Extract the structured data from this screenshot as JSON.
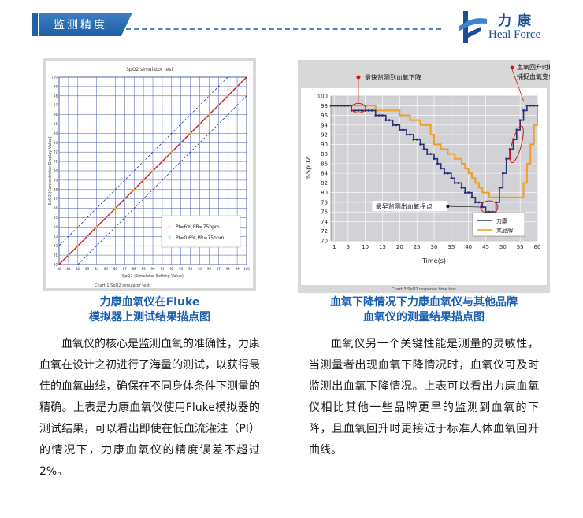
{
  "header": {
    "title": "监测精度"
  },
  "logo": {
    "cn": "力康",
    "en": "Heal Force"
  },
  "left": {
    "chart_title": "SpO2 simulator test",
    "chart_caption": "Chart 1 SpO2 simulator test",
    "caption_line1": "力康血氧仪在Fluke",
    "caption_line2": "模拟器上测试结果描点图",
    "paragraph": "血氧仪的核心是监测血氧的准确性，力康血氧在设计之初进行了海量的测试，以获得最佳的血氧曲线，确保在不同身体条件下测量的精确。上表是力康血氧仪使用Fluke模拟器的测试结果，可以看出即使在低血流灌注（PI）的情况下，力康血氧仪的精度误差不超过2%。"
  },
  "right": {
    "chart_caption": "Chart 3 SpO2 response time test",
    "caption_line1": "血氧下降情况下力康血氧仪与其他品牌",
    "caption_line2": "血氧仪的测量结果描点图",
    "annotation_fastest": "最快监测到血氧下降",
    "annotation_recover_1": "血氧回升时精确",
    "annotation_recover_2": "捕捉血氧变化",
    "annotation_earliest": "最早监测出血氧拐点",
    "paragraph": "血氧仪另一个关键性能是测量的灵敏性，当测量者出现血氧下降情况时，血氧仪可及时监测出血氧下降情况。上表可以看出力康血氧仪相比其他一些品牌更早的监测到血氧的下降，且血氧回升时更接近于标准人体血氧回升曲线。"
  },
  "chart_data": [
    {
      "type": "scatter",
      "title": "SpO2 simulator test",
      "xlabel": "SpO2 (Simulator Setting Value)",
      "ylabel": "SpO2 (Concentrator Display Value)",
      "xlim": [
        80,
        100
      ],
      "ylim": [
        80,
        100
      ],
      "xticks": [
        80,
        81,
        82,
        83,
        84,
        85,
        86,
        87,
        88,
        89,
        90,
        91,
        92,
        93,
        94,
        95,
        96,
        97,
        98,
        99,
        100
      ],
      "yticks": [
        80,
        81,
        82,
        83,
        84,
        85,
        86,
        87,
        88,
        89,
        90,
        91,
        92,
        93,
        94,
        95,
        96,
        97,
        98,
        99,
        100
      ],
      "grid": true,
      "legend": "bottom-right",
      "series": [
        {
          "name": "PI=6%,PR=75bpm",
          "color": "#e8c800",
          "x": [
            82,
            84,
            86,
            88,
            90,
            92,
            94,
            96,
            98
          ],
          "y": [
            82,
            84,
            86,
            88,
            90,
            92,
            94,
            96,
            98
          ]
        },
        {
          "name": "PI=0.6%,PR=75bpm",
          "color": "#7fc6d6",
          "x": [
            81,
            83,
            85,
            87,
            89,
            91,
            93,
            95,
            97,
            99
          ],
          "y": [
            81,
            83,
            85,
            87,
            89,
            91,
            93,
            95,
            97,
            99
          ]
        }
      ]
    },
    {
      "type": "line",
      "xlabel": "Time(s)",
      "ylabel": "%SpO2",
      "xlim": [
        0,
        60
      ],
      "ylim": [
        70,
        100
      ],
      "xticks": [
        1,
        5,
        10,
        15,
        20,
        25,
        30,
        35,
        40,
        45,
        50,
        55,
        60
      ],
      "yticks": [
        70,
        72,
        74,
        76,
        78,
        80,
        82,
        84,
        86,
        88,
        90,
        92,
        94,
        96,
        98,
        100
      ],
      "grid": true,
      "legend": "bottom-right",
      "series": [
        {
          "name": "力康",
          "color": "#2a2f7a",
          "x": [
            0,
            1,
            2,
            3,
            4,
            5,
            6,
            7,
            8,
            9,
            10,
            11,
            12,
            13,
            14,
            15,
            16,
            17,
            18,
            19,
            20,
            21,
            22,
            23,
            24,
            25,
            26,
            27,
            28,
            29,
            30,
            31,
            32,
            33,
            34,
            35,
            36,
            37,
            38,
            39,
            40,
            41,
            42,
            43,
            44,
            45,
            46,
            47,
            48,
            49,
            50,
            51,
            52,
            53,
            54,
            55,
            56,
            57,
            58,
            59,
            60
          ],
          "y": [
            98,
            98,
            98,
            98,
            98,
            98,
            97,
            97,
            97,
            97,
            97,
            97,
            97,
            96,
            96,
            96,
            95,
            95,
            94,
            94,
            93,
            93,
            92,
            92,
            91,
            91,
            90,
            89,
            88,
            88,
            87,
            86,
            85,
            84,
            84,
            83,
            82,
            82,
            81,
            80,
            80,
            79,
            78,
            78,
            77,
            76,
            76,
            76,
            78,
            81,
            84,
            87,
            89,
            91,
            93,
            95,
            97,
            98,
            98,
            98,
            98
          ]
        },
        {
          "name": "某品牌",
          "color": "#f0a020",
          "x": [
            0,
            1,
            2,
            3,
            4,
            5,
            6,
            7,
            8,
            9,
            10,
            11,
            12,
            13,
            14,
            15,
            16,
            17,
            18,
            19,
            20,
            21,
            22,
            23,
            24,
            25,
            26,
            27,
            28,
            29,
            30,
            31,
            32,
            33,
            34,
            35,
            36,
            37,
            38,
            39,
            40,
            41,
            42,
            43,
            44,
            45,
            46,
            47,
            48,
            49,
            50,
            51,
            52,
            53,
            54,
            55,
            56,
            57,
            58,
            59,
            60
          ],
          "y": [
            98,
            98,
            98,
            98,
            98,
            98,
            98,
            98,
            98,
            98,
            98,
            98,
            98,
            97,
            97,
            97,
            97,
            97,
            97,
            97,
            96,
            96,
            96,
            95,
            95,
            95,
            94,
            94,
            94,
            92,
            90,
            90,
            89,
            89,
            88,
            88,
            87,
            87,
            86,
            85,
            84,
            83,
            82,
            81,
            80,
            80,
            79,
            79,
            79,
            79,
            79,
            79,
            79,
            79,
            79,
            79,
            82,
            86,
            90,
            94,
            98
          ]
        }
      ]
    }
  ]
}
